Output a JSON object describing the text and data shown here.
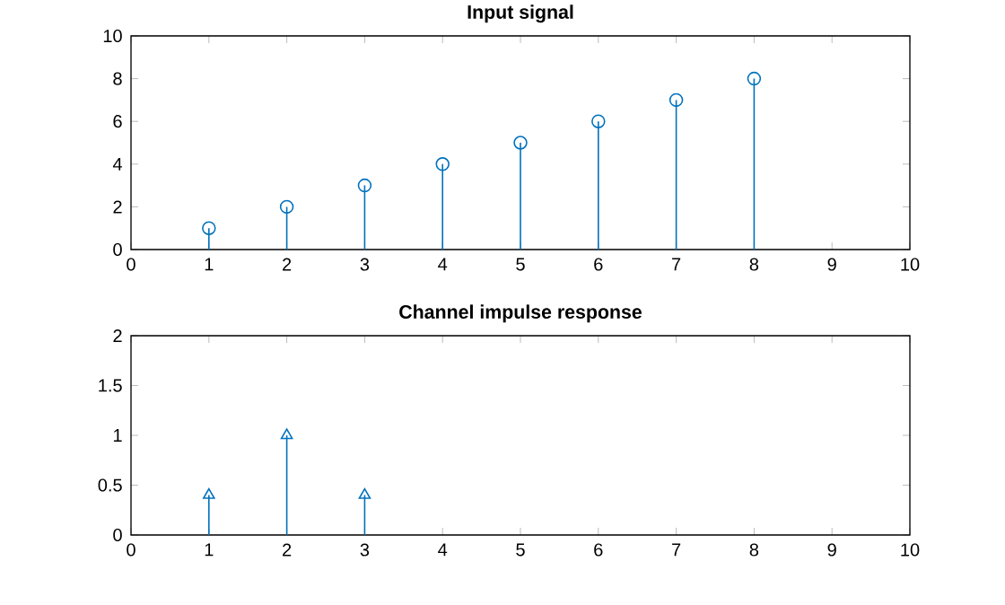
{
  "chart_data": [
    {
      "type": "lollipop",
      "title": "Input signal",
      "x": [
        1,
        2,
        3,
        4,
        5,
        6,
        7,
        8
      ],
      "xlim": [
        0,
        10
      ],
      "xticks": [
        0,
        1,
        2,
        3,
        4,
        5,
        6,
        7,
        8,
        9,
        10
      ],
      "ylim": [
        0,
        10
      ],
      "yticks": [
        0,
        2,
        4,
        6,
        8,
        10
      ],
      "marker": "circle",
      "series": [
        {
          "color": "#0072bd",
          "values": [
            1,
            2,
            3,
            4,
            5,
            6,
            7,
            8
          ]
        }
      ]
    },
    {
      "type": "lollipop",
      "title": "Channel impulse response",
      "x": [
        1,
        2,
        3
      ],
      "xlim": [
        0,
        10
      ],
      "xticks": [
        0,
        1,
        2,
        3,
        4,
        5,
        6,
        7,
        8,
        9,
        10
      ],
      "ylim": [
        0,
        2
      ],
      "yticks": [
        0,
        0.5,
        1,
        1.5,
        2
      ],
      "marker": "triangle",
      "series": [
        {
          "color": "#0072bd",
          "values": [
            0.4,
            1,
            0.4
          ]
        }
      ]
    }
  ]
}
